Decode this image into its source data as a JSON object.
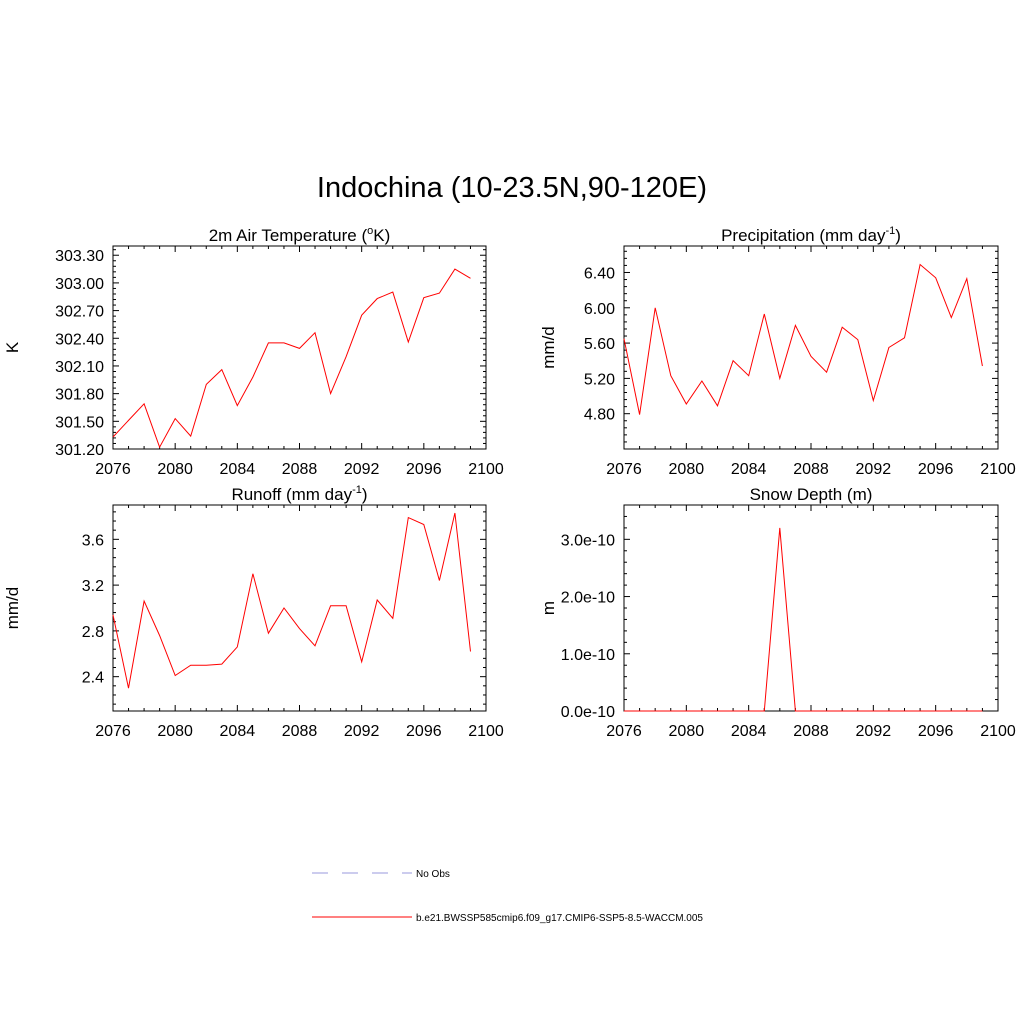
{
  "title": "Indochina (10-23.5N,90-120E)",
  "chart_data": [
    {
      "type": "line",
      "title": "2m Air Temperature (°K)",
      "title_main": "2m Air Temperature (",
      "title_sup": "o",
      "title_tail": "K)",
      "ylabel": "K",
      "xlabel": "",
      "xlim": [
        2076,
        2100
      ],
      "ylim": [
        301.2,
        303.4
      ],
      "xticks": [
        2076,
        2080,
        2084,
        2088,
        2092,
        2096,
        2100
      ],
      "yticks": [
        301.2,
        301.5,
        301.8,
        302.1,
        302.4,
        302.7,
        303.0,
        303.3
      ],
      "ytick_labels": [
        "301.20",
        "301.50",
        "301.80",
        "302.10",
        "302.40",
        "302.70",
        "303.00",
        "303.30"
      ],
      "series": [
        {
          "name": "b.e21.BWSSP585cmip6.f09_g17.CMIP6-SSP5-8.5-WACCM.005",
          "color": "#ff0000",
          "x": [
            2076,
            2077,
            2078,
            2079,
            2080,
            2081,
            2082,
            2083,
            2084,
            2085,
            2086,
            2087,
            2088,
            2089,
            2090,
            2091,
            2092,
            2093,
            2094,
            2095,
            2096,
            2097,
            2098,
            2099
          ],
          "y": [
            301.33,
            301.51,
            301.69,
            301.22,
            301.53,
            301.34,
            301.9,
            302.06,
            301.67,
            301.98,
            302.35,
            302.35,
            302.29,
            302.46,
            301.8,
            302.2,
            302.65,
            302.83,
            302.9,
            302.36,
            302.84,
            302.89,
            303.15,
            303.05
          ]
        }
      ]
    },
    {
      "type": "line",
      "title": "Precipitation (mm day-1)",
      "title_main": "Precipitation (mm day",
      "title_sup": "-1",
      "title_tail": ")",
      "ylabel": "mm/d",
      "xlabel": "",
      "xlim": [
        2076,
        2100
      ],
      "ylim": [
        4.4,
        6.7
      ],
      "xticks": [
        2076,
        2080,
        2084,
        2088,
        2092,
        2096,
        2100
      ],
      "yticks": [
        4.8,
        5.2,
        5.6,
        6.0,
        6.4
      ],
      "ytick_labels": [
        "4.80",
        "5.20",
        "5.60",
        "6.00",
        "6.40"
      ],
      "series": [
        {
          "name": "b.e21.BWSSP585cmip6.f09_g17.CMIP6-SSP5-8.5-WACCM.005",
          "color": "#ff0000",
          "x": [
            2076,
            2077,
            2078,
            2079,
            2080,
            2081,
            2082,
            2083,
            2084,
            2085,
            2086,
            2087,
            2088,
            2089,
            2090,
            2091,
            2092,
            2093,
            2094,
            2095,
            2096,
            2097,
            2098,
            2099
          ],
          "y": [
            5.65,
            4.79,
            6.0,
            5.23,
            4.91,
            5.17,
            4.89,
            5.4,
            5.23,
            5.93,
            5.2,
            5.8,
            5.45,
            5.27,
            5.78,
            5.64,
            4.95,
            5.55,
            5.66,
            6.49,
            6.34,
            5.89,
            6.33,
            5.34
          ]
        }
      ]
    },
    {
      "type": "line",
      "title": "Runoff (mm day-1)",
      "title_main": "Runoff (mm day",
      "title_sup": "-1",
      "title_tail": ")",
      "ylabel": "mm/d",
      "xlabel": "",
      "xlim": [
        2076,
        2100
      ],
      "ylim": [
        2.1,
        3.9
      ],
      "xticks": [
        2076,
        2080,
        2084,
        2088,
        2092,
        2096,
        2100
      ],
      "yticks": [
        2.4,
        2.8,
        3.2,
        3.6
      ],
      "ytick_labels": [
        "2.4",
        "2.8",
        "3.2",
        "3.6"
      ],
      "series": [
        {
          "name": "b.e21.BWSSP585cmip6.f09_g17.CMIP6-SSP5-8.5-WACCM.005",
          "color": "#ff0000",
          "x": [
            2076,
            2077,
            2078,
            2079,
            2080,
            2081,
            2082,
            2083,
            2084,
            2085,
            2086,
            2087,
            2088,
            2089,
            2090,
            2091,
            2092,
            2093,
            2094,
            2095,
            2096,
            2097,
            2098,
            2099
          ],
          "y": [
            2.94,
            2.3,
            3.06,
            2.76,
            2.41,
            2.5,
            2.5,
            2.51,
            2.66,
            3.3,
            2.78,
            3.0,
            2.82,
            2.67,
            3.02,
            3.02,
            2.53,
            3.07,
            2.91,
            3.79,
            3.73,
            3.24,
            3.83,
            2.62
          ]
        }
      ]
    },
    {
      "type": "line",
      "title": "Snow Depth (m)",
      "title_main": "Snow Depth (m)",
      "title_sup": "",
      "title_tail": "",
      "ylabel": "m",
      "xlabel": "",
      "xlim": [
        2076,
        2100
      ],
      "ylim": [
        0,
        3.6e-10
      ],
      "xticks": [
        2076,
        2080,
        2084,
        2088,
        2092,
        2096,
        2100
      ],
      "yticks": [
        0,
        1e-10,
        2e-10,
        3e-10
      ],
      "ytick_labels": [
        "0.0e-10",
        "1.0e-10",
        "2.0e-10",
        "3.0e-10"
      ],
      "series": [
        {
          "name": "b.e21.BWSSP585cmip6.f09_g17.CMIP6-SSP5-8.5-WACCM.005",
          "color": "#ff0000",
          "x": [
            2076,
            2077,
            2078,
            2079,
            2080,
            2081,
            2082,
            2083,
            2084,
            2085,
            2086,
            2087,
            2088,
            2089,
            2090,
            2091,
            2092,
            2093,
            2094,
            2095,
            2096,
            2097,
            2098,
            2099
          ],
          "y": [
            0,
            0,
            0,
            0,
            0,
            0,
            0,
            0,
            0,
            0,
            3.2e-10,
            0,
            0,
            0,
            0,
            0,
            0,
            0,
            0,
            0,
            0,
            0,
            0,
            0
          ]
        }
      ]
    }
  ],
  "legend": [
    {
      "label": "No Obs",
      "color": "#9999dd",
      "style": "dashed"
    },
    {
      "label": "b.e21.BWSSP585cmip6.f09_g17.CMIP6-SSP5-8.5-WACCM.005",
      "color": "#ff0000",
      "style": "solid"
    }
  ]
}
